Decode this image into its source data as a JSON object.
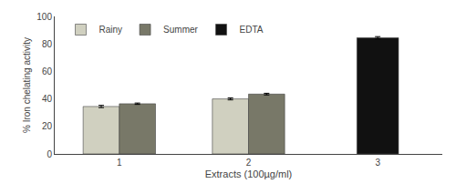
{
  "chart_data": {
    "type": "bar",
    "categories": [
      "1",
      "2",
      "3"
    ],
    "series": [
      {
        "name": "Rainy",
        "color": "#d0d0c0",
        "values": [
          34.5,
          40.0,
          null
        ],
        "errors": [
          0.8,
          0.7,
          null
        ]
      },
      {
        "name": "Summer",
        "color": "#787868",
        "values": [
          36.5,
          43.5,
          null
        ],
        "errors": [
          0.5,
          0.6,
          null
        ]
      },
      {
        "name": "EDTA",
        "color": "#111111",
        "values": [
          null,
          null,
          84.5
        ],
        "errors": [
          null,
          null,
          0.8
        ]
      }
    ],
    "xlabel": "Extracts (100µg/ml)",
    "ylabel": "% Iron chelating activity",
    "ylim": [
      0,
      100
    ],
    "yticks": [
      0,
      20,
      40,
      60,
      80,
      100
    ],
    "grid": false,
    "legend": "upper left"
  }
}
